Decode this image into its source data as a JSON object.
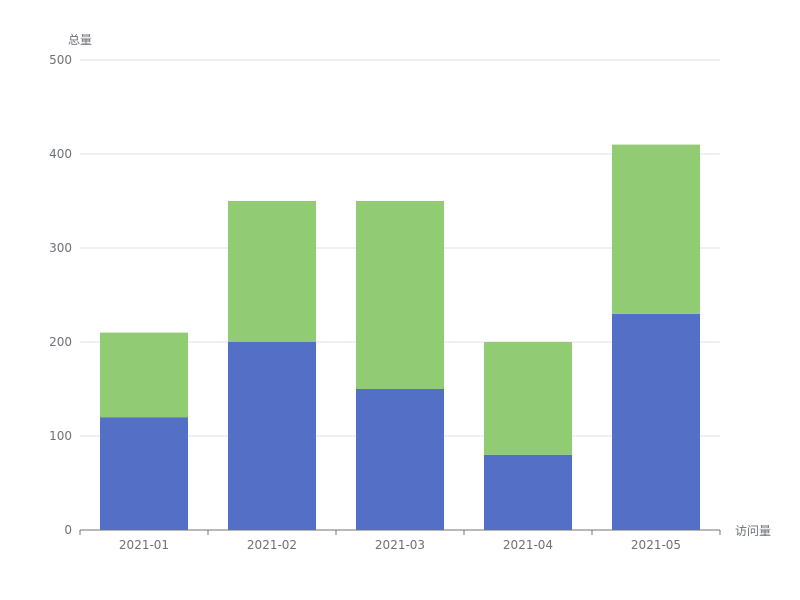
{
  "chart_data": {
    "type": "bar",
    "stacked": true,
    "categories": [
      "2021-01",
      "2021-02",
      "2021-03",
      "2021-04",
      "2021-05"
    ],
    "series": [
      {
        "values": [
          120,
          200,
          150,
          80,
          230
        ],
        "color": "#5470c6"
      },
      {
        "values": [
          90,
          150,
          200,
          120,
          180
        ],
        "color": "#91cc75"
      }
    ],
    "xlabel": "访问量",
    "ylabel": "总量",
    "ylim": [
      0,
      500
    ],
    "yticks": [
      0,
      100,
      200,
      300,
      400,
      500
    ],
    "grid": true,
    "legend": "none"
  }
}
